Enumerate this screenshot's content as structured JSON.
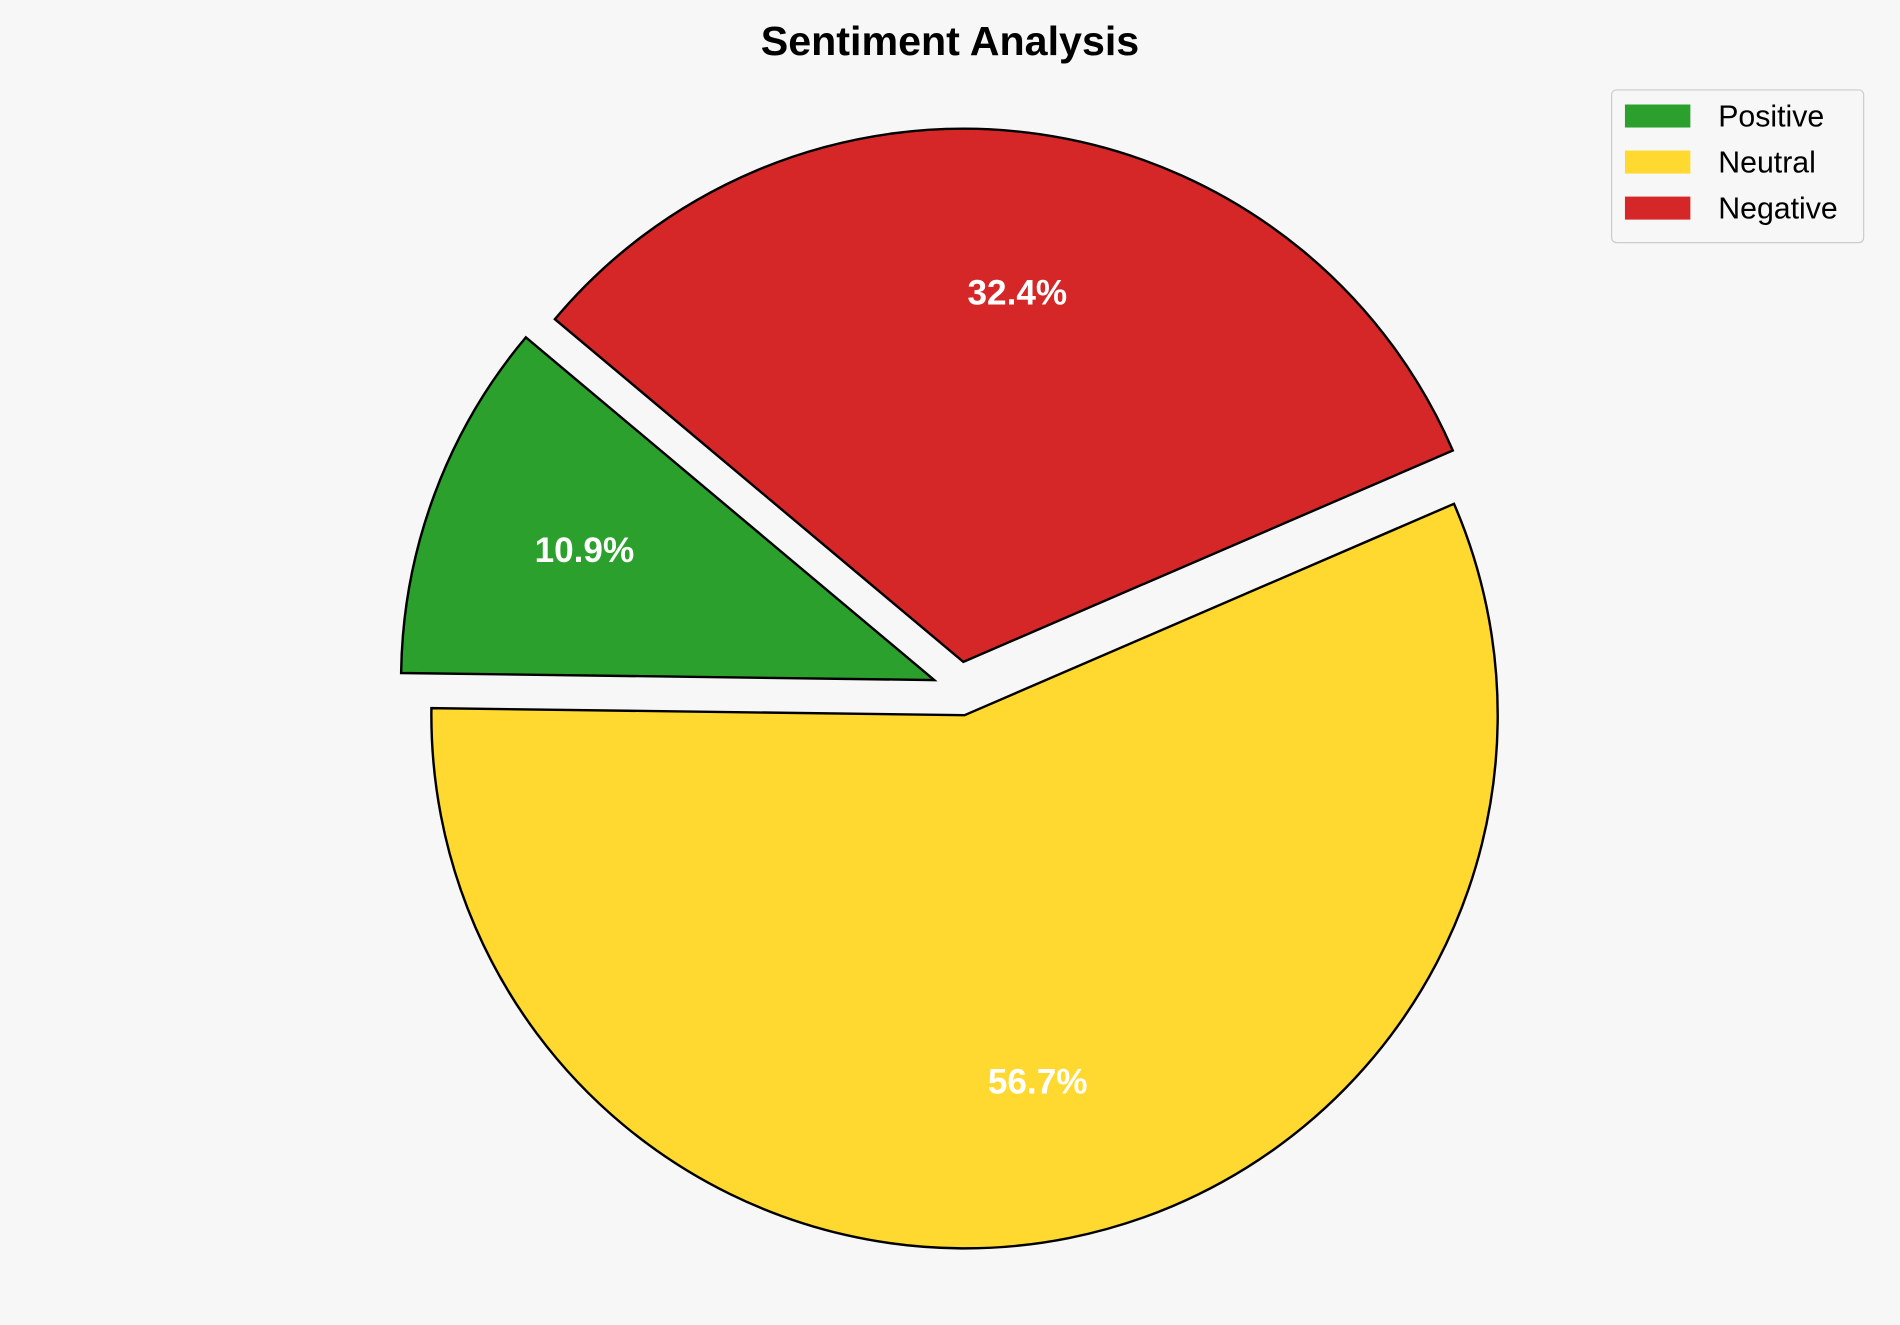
{
  "chart_data": {
    "type": "pie",
    "title": "Sentiment Analysis",
    "categories": [
      "Positive",
      "Neutral",
      "Negative"
    ],
    "values": [
      10.9,
      56.7,
      32.4
    ],
    "labels": [
      "10.9%",
      "56.7%",
      "32.4%"
    ],
    "colors": [
      "#2ca02c",
      "#ffd92f",
      "#d62728"
    ],
    "start_angle_deg": 140,
    "exploded": true,
    "legend_position": "top-right",
    "background": "#f7f7f7",
    "edge_color": "#000000",
    "label_color": "#ffffff"
  }
}
